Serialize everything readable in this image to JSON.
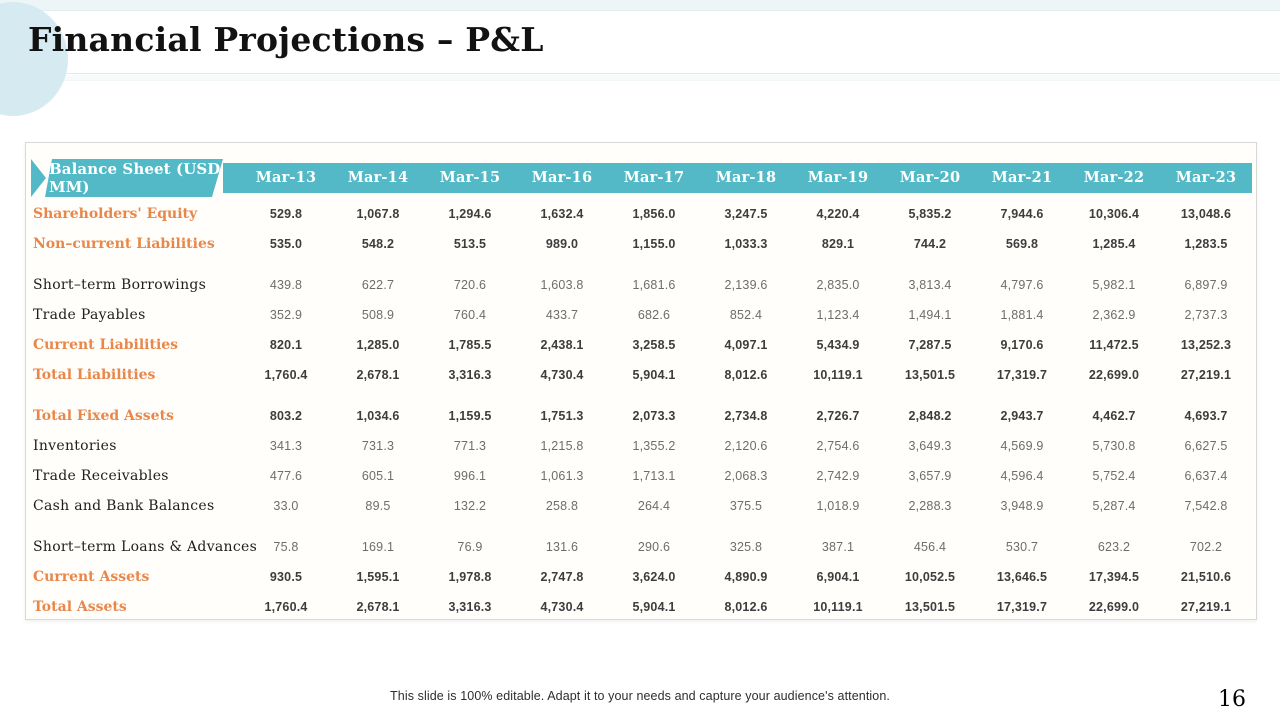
{
  "slide": {
    "title": "Financial Projections – P&L",
    "footer": "This slide is 100% editable. Adapt it to your needs and capture your audience's attention.",
    "page_number": "16"
  },
  "colors": {
    "teal_header": "#54b9c7",
    "orange_accent": "#e8874a",
    "circle_decoration": "#d6ebf1"
  },
  "table": {
    "label_header": "Balance Sheet (USD MM)",
    "columns": [
      "Mar-13",
      "Mar-14",
      "Mar-15",
      "Mar-16",
      "Mar-17",
      "Mar-18",
      "Mar-19",
      "Mar-20",
      "Mar-21",
      "Mar-22",
      "Mar-23"
    ],
    "rows": [
      {
        "label": "Shareholders' Equity",
        "style": "strong",
        "values": [
          "529.8",
          "1,067.8",
          "1,294.6",
          "1,632.4",
          "1,856.0",
          "3,247.5",
          "4,220.4",
          "5,835.2",
          "7,944.6",
          "10,306.4",
          "13,048.6"
        ]
      },
      {
        "label": "Non–current Liabilities",
        "style": "strong",
        "values": [
          "535.0",
          "548.2",
          "513.5",
          "989.0",
          "1,155.0",
          "1,033.3",
          "829.1",
          "744.2",
          "569.8",
          "1,285.4",
          "1,283.5"
        ]
      },
      {
        "style": "spacer"
      },
      {
        "label": "Short–term Borrowings",
        "style": "normal",
        "values": [
          "439.8",
          "622.7",
          "720.6",
          "1,603.8",
          "1,681.6",
          "2,139.6",
          "2,835.0",
          "3,813.4",
          "4,797.6",
          "5,982.1",
          "6,897.9"
        ]
      },
      {
        "label": "Trade Payables",
        "style": "normal",
        "values": [
          "352.9",
          "508.9",
          "760.4",
          "433.7",
          "682.6",
          "852.4",
          "1,123.4",
          "1,494.1",
          "1,881.4",
          "2,362.9",
          "2,737.3"
        ]
      },
      {
        "label": "Current Liabilities",
        "style": "strong",
        "values": [
          "820.1",
          "1,285.0",
          "1,785.5",
          "2,438.1",
          "3,258.5",
          "4,097.1",
          "5,434.9",
          "7,287.5",
          "9,170.6",
          "11,472.5",
          "13,252.3"
        ]
      },
      {
        "label": "Total Liabilities",
        "style": "strong",
        "values": [
          "1,760.4",
          "2,678.1",
          "3,316.3",
          "4,730.4",
          "5,904.1",
          "8,012.6",
          "10,119.1",
          "13,501.5",
          "17,319.7",
          "22,699.0",
          "27,219.1"
        ]
      },
      {
        "style": "spacer"
      },
      {
        "label": "Total Fixed Assets",
        "style": "strong",
        "values": [
          "803.2",
          "1,034.6",
          "1,159.5",
          "1,751.3",
          "2,073.3",
          "2,734.8",
          "2,726.7",
          "2,848.2",
          "2,943.7",
          "4,462.7",
          "4,693.7"
        ]
      },
      {
        "label": "Inventories",
        "style": "normal",
        "values": [
          "341.3",
          "731.3",
          "771.3",
          "1,215.8",
          "1,355.2",
          "2,120.6",
          "2,754.6",
          "3,649.3",
          "4,569.9",
          "5,730.8",
          "6,627.5"
        ]
      },
      {
        "label": "Trade Receivables",
        "style": "normal",
        "values": [
          "477.6",
          "605.1",
          "996.1",
          "1,061.3",
          "1,713.1",
          "2,068.3",
          "2,742.9",
          "3,657.9",
          "4,596.4",
          "5,752.4",
          "6,637.4"
        ]
      },
      {
        "label": "Cash and Bank Balances",
        "style": "normal",
        "values": [
          "33.0",
          "89.5",
          "132.2",
          "258.8",
          "264.4",
          "375.5",
          "1,018.9",
          "2,288.3",
          "3,948.9",
          "5,287.4",
          "7,542.8"
        ]
      },
      {
        "style": "spacer"
      },
      {
        "label": "Short–term Loans & Advances",
        "style": "normal",
        "values": [
          "75.8",
          "169.1",
          "76.9",
          "131.6",
          "290.6",
          "325.8",
          "387.1",
          "456.4",
          "530.7",
          "623.2",
          "702.2"
        ]
      },
      {
        "label": "Current Assets",
        "style": "strong",
        "values": [
          "930.5",
          "1,595.1",
          "1,978.8",
          "2,747.8",
          "3,624.0",
          "4,890.9",
          "6,904.1",
          "10,052.5",
          "13,646.5",
          "17,394.5",
          "21,510.6"
        ]
      },
      {
        "label": "Total Assets",
        "style": "strong",
        "values": [
          "1,760.4",
          "2,678.1",
          "3,316.3",
          "4,730.4",
          "5,904.1",
          "8,012.6",
          "10,119.1",
          "13,501.5",
          "17,319.7",
          "22,699.0",
          "27,219.1"
        ]
      }
    ]
  }
}
